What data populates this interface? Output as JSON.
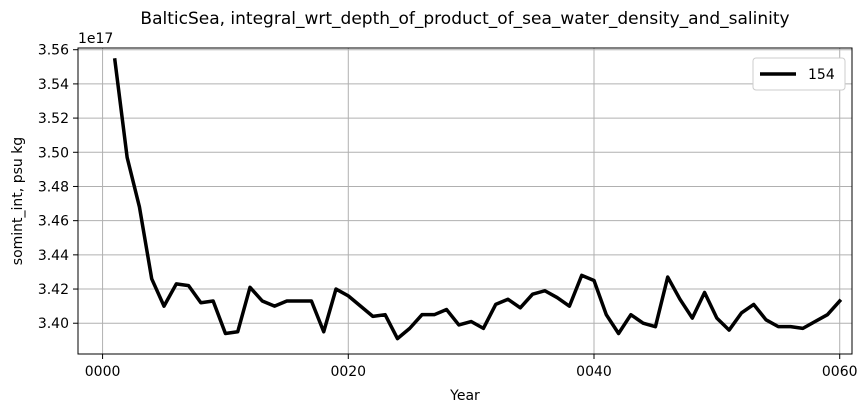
{
  "chart_data": {
    "type": "line",
    "title": "BalticSea, integral_wrt_depth_of_product_of_sea_water_density_and_salinity",
    "xlabel": "Year",
    "ylabel": "somint_int, psu kg",
    "offset_text": "1e17",
    "xlim": [
      -2,
      61
    ],
    "ylim": [
      3.382,
      3.561
    ],
    "x_ticks": [
      0,
      20,
      40,
      60
    ],
    "x_tick_labels": [
      "0000",
      "0020",
      "0040",
      "0060"
    ],
    "y_ticks": [
      3.4,
      3.42,
      3.44,
      3.46,
      3.48,
      3.5,
      3.52,
      3.54,
      3.56
    ],
    "y_tick_labels": [
      "3.40",
      "3.42",
      "3.44",
      "3.46",
      "3.48",
      "3.50",
      "3.52",
      "3.54",
      "3.56"
    ],
    "grid": true,
    "legend_position": "top-right",
    "series": [
      {
        "name": "154",
        "color": "#000000",
        "x": [
          1,
          2,
          3,
          4,
          5,
          6,
          7,
          8,
          9,
          10,
          11,
          12,
          13,
          14,
          15,
          16,
          17,
          18,
          19,
          20,
          21,
          22,
          23,
          24,
          25,
          26,
          27,
          28,
          29,
          30,
          31,
          32,
          33,
          34,
          35,
          36,
          37,
          38,
          39,
          40,
          41,
          42,
          43,
          44,
          45,
          46,
          47,
          48,
          49,
          50,
          51,
          52,
          53,
          54,
          55,
          56,
          57,
          58,
          59,
          60
        ],
        "values": [
          3.554,
          3.497,
          3.468,
          3.426,
          3.41,
          3.423,
          3.422,
          3.412,
          3.413,
          3.394,
          3.395,
          3.421,
          3.413,
          3.41,
          3.413,
          3.413,
          3.413,
          3.395,
          3.42,
          3.416,
          3.41,
          3.404,
          3.405,
          3.391,
          3.397,
          3.405,
          3.405,
          3.408,
          3.399,
          3.401,
          3.397,
          3.411,
          3.414,
          3.409,
          3.417,
          3.419,
          3.415,
          3.41,
          3.428,
          3.425,
          3.405,
          3.394,
          3.405,
          3.4,
          3.398,
          3.427,
          3.414,
          3.403,
          3.418,
          3.403,
          3.396,
          3.406,
          3.411,
          3.402,
          3.398,
          3.398,
          3.397,
          3.401,
          3.405,
          3.413
        ]
      }
    ]
  }
}
